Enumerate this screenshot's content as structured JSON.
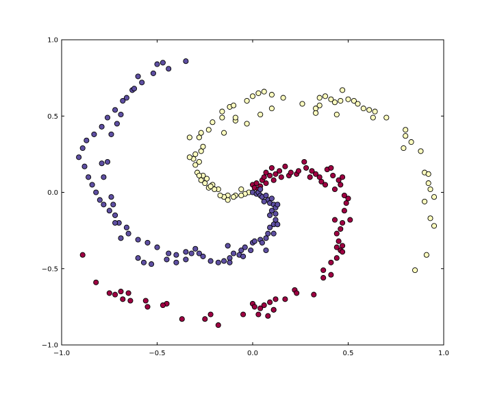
{
  "chart_data": {
    "type": "scatter",
    "title": "",
    "xlabel": "",
    "ylabel": "",
    "xlim": [
      -1.0,
      1.0
    ],
    "ylim": [
      -1.0,
      1.0
    ],
    "xticks": [
      -1.0,
      -0.5,
      0.0,
      0.5,
      1.0
    ],
    "yticks": [
      -1.0,
      -0.5,
      0.0,
      0.5,
      1.0
    ],
    "xtick_labels": [
      "−1.0",
      "−0.5",
      "0.0",
      "0.5",
      "1.0"
    ],
    "ytick_labels": [
      "−1.0",
      "−0.5",
      "0.0",
      "0.5",
      "1.0"
    ],
    "grid": false,
    "legend": "none",
    "colors": {
      "class_0": "#9e0142",
      "class_1": "#ffffbf",
      "class_2": "#5e4fa2",
      "edge": "#000000"
    },
    "series": [
      {
        "color_key": "class_0",
        "points": [
          [
            0.0,
            0.05
          ],
          [
            0.01,
            0.03
          ],
          [
            0.02,
            0.06
          ],
          [
            0.03,
            0.02
          ],
          [
            0.04,
            0.04
          ],
          [
            0.05,
            0.08
          ],
          [
            0.06,
            0.1
          ],
          [
            0.07,
            0.13
          ],
          [
            0.07,
            0.06
          ],
          [
            0.09,
            0.11
          ],
          [
            0.1,
            0.16
          ],
          [
            0.12,
            0.12
          ],
          [
            0.11,
            0.08
          ],
          [
            0.14,
            0.14
          ],
          [
            0.15,
            0.1
          ],
          [
            0.17,
            0.17
          ],
          [
            0.19,
            0.11
          ],
          [
            0.2,
            0.13
          ],
          [
            0.23,
            0.12
          ],
          [
            0.24,
            0.14
          ],
          [
            0.27,
            0.2
          ],
          [
            0.28,
            0.16
          ],
          [
            0.3,
            0.1
          ],
          [
            0.31,
            0.14
          ],
          [
            0.33,
            0.12
          ],
          [
            0.35,
            0.1
          ],
          [
            0.36,
            0.07
          ],
          [
            0.38,
            0.05
          ],
          [
            0.39,
            0.15
          ],
          [
            0.41,
            0.16
          ],
          [
            0.42,
            0.11
          ],
          [
            0.43,
            0.02
          ],
          [
            0.45,
            0.08
          ],
          [
            0.47,
            0.1
          ],
          [
            0.46,
            0.05
          ],
          [
            0.48,
            -0.02
          ],
          [
            0.49,
            -0.07
          ],
          [
            0.5,
            -0.04
          ],
          [
            0.48,
            -0.12
          ],
          [
            0.51,
            -0.18
          ],
          [
            0.47,
            -0.2
          ],
          [
            0.46,
            -0.24
          ],
          [
            0.44,
            -0.27
          ],
          [
            0.45,
            -0.32
          ],
          [
            0.47,
            -0.35
          ],
          [
            0.46,
            -0.38
          ],
          [
            0.44,
            -0.43
          ],
          [
            0.41,
            -0.46
          ],
          [
            0.41,
            -0.54
          ],
          [
            0.37,
            -0.56
          ],
          [
            0.32,
            -0.67
          ],
          [
            0.22,
            -0.64
          ],
          [
            0.23,
            -0.66
          ],
          [
            0.17,
            -0.7
          ],
          [
            0.12,
            -0.7
          ],
          [
            0.11,
            -0.77
          ],
          [
            0.09,
            -0.72
          ],
          [
            0.06,
            -0.74
          ],
          [
            0.04,
            -0.76
          ],
          [
            0.03,
            -0.8
          ],
          [
            0.0,
            -0.73
          ],
          [
            -0.05,
            -0.8
          ],
          [
            -0.18,
            -0.87
          ],
          [
            -0.22,
            -0.8
          ],
          [
            -0.25,
            -0.83
          ],
          [
            -0.37,
            -0.83
          ],
          [
            -0.45,
            -0.73
          ],
          [
            -0.47,
            -0.74
          ],
          [
            -0.55,
            -0.75
          ],
          [
            -0.56,
            -0.71
          ],
          [
            -0.64,
            -0.71
          ],
          [
            -0.65,
            -0.66
          ],
          [
            -0.68,
            -0.7
          ],
          [
            -0.69,
            -0.65
          ],
          [
            -0.72,
            -0.67
          ],
          [
            -0.75,
            -0.66
          ],
          [
            -0.82,
            -0.59
          ],
          [
            -0.89,
            -0.41
          ],
          [
            0.11,
            -0.77
          ],
          [
            0.08,
            -0.81
          ],
          [
            0.01,
            -0.75
          ],
          [
            0.37,
            -0.51
          ],
          [
            0.47,
            -0.39
          ],
          [
            0.44,
            -0.36
          ],
          [
            0.43,
            -0.18
          ]
        ]
      },
      {
        "color_key": "class_1",
        "points": [
          [
            -0.02,
            0.0
          ],
          [
            -0.04,
            -0.01
          ],
          [
            -0.06,
            -0.02
          ],
          [
            -0.09,
            -0.02
          ],
          [
            -0.1,
            -0.03
          ],
          [
            -0.13,
            -0.02
          ],
          [
            -0.15,
            -0.03
          ],
          [
            -0.17,
            -0.02
          ],
          [
            -0.18,
            0.02
          ],
          [
            -0.2,
            0.02
          ],
          [
            -0.21,
            0.05
          ],
          [
            -0.23,
            0.03
          ],
          [
            -0.25,
            0.06
          ],
          [
            -0.24,
            0.09
          ],
          [
            -0.27,
            0.08
          ],
          [
            -0.26,
            0.11
          ],
          [
            -0.29,
            0.13
          ],
          [
            -0.3,
            0.18
          ],
          [
            -0.28,
            0.2
          ],
          [
            -0.31,
            0.22
          ],
          [
            -0.33,
            0.23
          ],
          [
            -0.3,
            0.25
          ],
          [
            -0.27,
            0.27
          ],
          [
            -0.26,
            0.3
          ],
          [
            -0.27,
            0.39
          ],
          [
            -0.28,
            0.36
          ],
          [
            -0.23,
            0.41
          ],
          [
            -0.21,
            0.46
          ],
          [
            -0.16,
            0.49
          ],
          [
            -0.16,
            0.53
          ],
          [
            -0.12,
            0.56
          ],
          [
            -0.1,
            0.57
          ],
          [
            -0.09,
            0.47
          ],
          [
            -0.03,
            0.6
          ],
          [
            -0.03,
            0.45
          ],
          [
            0.0,
            0.63
          ],
          [
            0.03,
            0.65
          ],
          [
            0.06,
            0.66
          ],
          [
            0.1,
            0.64
          ],
          [
            0.16,
            0.62
          ],
          [
            0.26,
            0.58
          ],
          [
            0.33,
            0.55
          ],
          [
            0.35,
            0.57
          ],
          [
            0.35,
            0.62
          ],
          [
            0.38,
            0.63
          ],
          [
            0.41,
            0.61
          ],
          [
            0.43,
            0.59
          ],
          [
            0.46,
            0.6
          ],
          [
            0.5,
            0.61
          ],
          [
            0.53,
            0.6
          ],
          [
            0.55,
            0.58
          ],
          [
            0.58,
            0.55
          ],
          [
            0.61,
            0.54
          ],
          [
            0.64,
            0.53
          ],
          [
            0.7,
            0.49
          ],
          [
            0.8,
            0.41
          ],
          [
            0.8,
            0.37
          ],
          [
            0.83,
            0.33
          ],
          [
            0.88,
            0.27
          ],
          [
            0.9,
            0.13
          ],
          [
            0.92,
            0.06
          ],
          [
            0.93,
            0.02
          ],
          [
            0.95,
            -0.03
          ],
          [
            0.9,
            -0.06
          ],
          [
            0.93,
            -0.17
          ],
          [
            0.95,
            -0.22
          ],
          [
            0.91,
            -0.41
          ],
          [
            0.85,
            -0.51
          ],
          [
            0.04,
            0.51
          ],
          [
            0.1,
            0.55
          ],
          [
            0.47,
            0.67
          ],
          [
            0.44,
            0.51
          ],
          [
            0.33,
            0.52
          ],
          [
            0.63,
            0.49
          ],
          [
            0.92,
            0.12
          ],
          [
            0.79,
            0.29
          ],
          [
            -0.15,
            0.39
          ],
          [
            -0.09,
            0.49
          ],
          [
            -0.33,
            0.36
          ],
          [
            -0.28,
            0.11
          ],
          [
            -0.22,
            0.04
          ],
          [
            -0.13,
            -0.05
          ],
          [
            -0.06,
            0.02
          ]
        ]
      },
      {
        "color_key": "class_2",
        "points": [
          [
            0.0,
            0.0
          ],
          [
            0.02,
            -0.01
          ],
          [
            0.03,
            0.0
          ],
          [
            0.04,
            -0.02
          ],
          [
            0.05,
            -0.03
          ],
          [
            0.07,
            -0.02
          ],
          [
            0.08,
            -0.05
          ],
          [
            0.09,
            -0.07
          ],
          [
            0.1,
            -0.04
          ],
          [
            0.11,
            -0.08
          ],
          [
            0.12,
            -0.1
          ],
          [
            0.1,
            -0.12
          ],
          [
            0.12,
            -0.14
          ],
          [
            0.09,
            -0.15
          ],
          [
            0.12,
            -0.18
          ],
          [
            0.11,
            -0.21
          ],
          [
            0.09,
            -0.23
          ],
          [
            0.08,
            -0.27
          ],
          [
            0.07,
            -0.3
          ],
          [
            0.04,
            -0.31
          ],
          [
            0.0,
            -0.33
          ],
          [
            -0.04,
            -0.36
          ],
          [
            -0.06,
            -0.38
          ],
          [
            -0.1,
            -0.4
          ],
          [
            -0.12,
            -0.43
          ],
          [
            -0.15,
            -0.45
          ],
          [
            -0.18,
            -0.46
          ],
          [
            -0.22,
            -0.45
          ],
          [
            -0.26,
            -0.42
          ],
          [
            -0.28,
            -0.4
          ],
          [
            -0.3,
            -0.37
          ],
          [
            -0.35,
            -0.39
          ],
          [
            -0.4,
            -0.41
          ],
          [
            -0.44,
            -0.4
          ],
          [
            -0.5,
            -0.36
          ],
          [
            -0.55,
            -0.33
          ],
          [
            -0.6,
            -0.31
          ],
          [
            -0.65,
            -0.27
          ],
          [
            -0.66,
            -0.23
          ],
          [
            -0.7,
            -0.2
          ],
          [
            -0.72,
            -0.15
          ],
          [
            -0.75,
            -0.12
          ],
          [
            -0.78,
            -0.08
          ],
          [
            -0.8,
            -0.05
          ],
          [
            -0.82,
            0.0
          ],
          [
            -0.84,
            0.05
          ],
          [
            -0.86,
            0.1
          ],
          [
            -0.88,
            0.17
          ],
          [
            -0.91,
            0.23
          ],
          [
            -0.89,
            0.29
          ],
          [
            -0.87,
            0.34
          ],
          [
            -0.83,
            0.38
          ],
          [
            -0.79,
            0.43
          ],
          [
            -0.76,
            0.49
          ],
          [
            -0.72,
            0.54
          ],
          [
            -0.68,
            0.6
          ],
          [
            -0.63,
            0.67
          ],
          [
            -0.58,
            0.72
          ],
          [
            -0.52,
            0.78
          ],
          [
            -0.44,
            0.81
          ],
          [
            -0.35,
            0.86
          ],
          [
            -0.47,
            0.85
          ],
          [
            -0.5,
            0.84
          ],
          [
            -0.6,
            0.76
          ],
          [
            -0.62,
            0.68
          ],
          [
            -0.66,
            0.62
          ],
          [
            -0.69,
            0.51
          ],
          [
            -0.71,
            0.45
          ],
          [
            -0.74,
            0.38
          ],
          [
            -0.79,
            0.19
          ],
          [
            -0.76,
            0.2
          ],
          [
            -0.78,
            0.1
          ],
          [
            -0.74,
            -0.03
          ],
          [
            -0.73,
            -0.08
          ],
          [
            -0.72,
            -0.2
          ],
          [
            -0.69,
            -0.3
          ],
          [
            -0.6,
            -0.43
          ],
          [
            -0.57,
            -0.46
          ],
          [
            -0.53,
            -0.47
          ],
          [
            -0.45,
            -0.44
          ],
          [
            -0.4,
            -0.46
          ],
          [
            -0.35,
            -0.44
          ],
          [
            -0.32,
            -0.4
          ],
          [
            -0.12,
            -0.46
          ],
          [
            -0.07,
            -0.41
          ],
          [
            0.01,
            -0.32
          ],
          [
            0.05,
            -0.33
          ],
          [
            0.13,
            -0.21
          ],
          [
            0.11,
            -0.27
          ],
          [
            0.07,
            -0.38
          ],
          [
            -0.13,
            -0.35
          ],
          [
            -0.01,
            -0.38
          ],
          [
            -0.05,
            -0.42
          ],
          [
            0.13,
            -0.08
          ],
          [
            0.06,
            -0.06
          ],
          [
            0.04,
            0.02
          ]
        ]
      }
    ]
  }
}
